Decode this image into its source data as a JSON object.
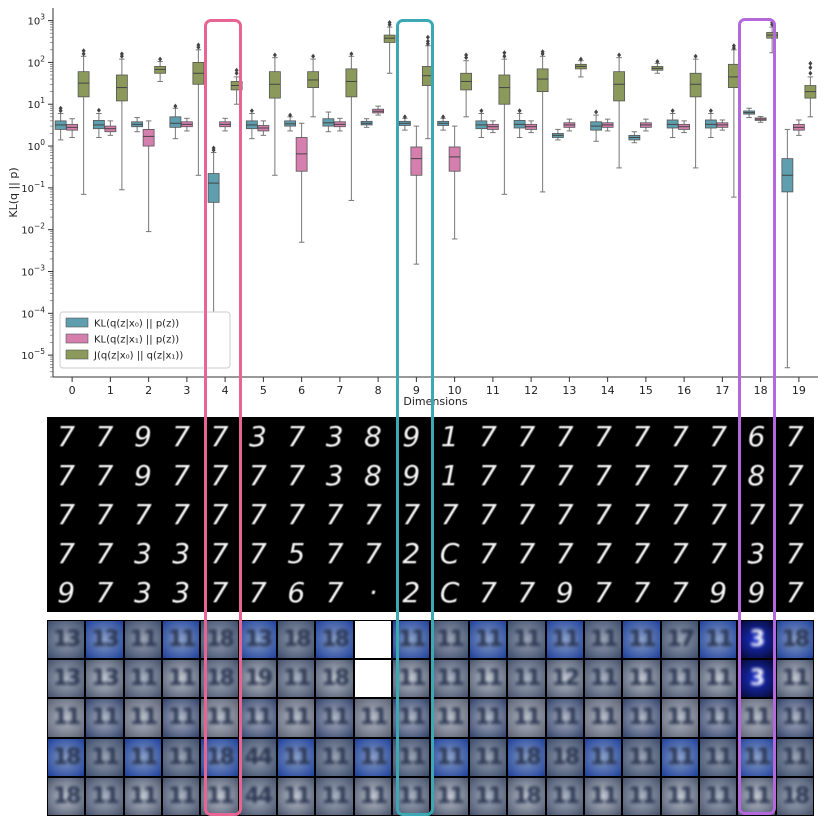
{
  "chart_data": {
    "type": "box",
    "scale": "log",
    "ylabel": "KL(q || p)",
    "xlabel": "Dimensions",
    "categories": [
      "0",
      "1",
      "2",
      "3",
      "4",
      "5",
      "6",
      "7",
      "8",
      "9",
      "10",
      "11",
      "12",
      "13",
      "14",
      "15",
      "16",
      "17",
      "18",
      "19"
    ],
    "ylim": [
      3e-06,
      2000
    ],
    "yticks": [
      {
        "value": 1000,
        "base": "10",
        "exp": "3"
      },
      {
        "value": 100,
        "base": "10",
        "exp": "2"
      },
      {
        "value": 10,
        "base": "10",
        "exp": "1"
      },
      {
        "value": 1,
        "base": "10",
        "exp": "0"
      },
      {
        "value": 0.1,
        "base": "10",
        "exp": "−1"
      },
      {
        "value": 0.01,
        "base": "10",
        "exp": "−2"
      },
      {
        "value": 0.001,
        "base": "10",
        "exp": "−3"
      },
      {
        "value": 0.0001,
        "base": "10",
        "exp": "−4"
      },
      {
        "value": 1e-05,
        "base": "10",
        "exp": "−5"
      }
    ],
    "legend": {
      "placement": "lower-left",
      "entries": [
        "KL(q(z|x₀) || p(z))",
        "KL(q(z|x₁) || p(z))",
        "J(q(z|x₀) || q(z|x₁))"
      ]
    },
    "series": [
      {
        "name": "KL(q(z|x₀) || p(z))",
        "color": "#5f9eae",
        "boxes": [
          {
            "whislo": 1.4,
            "q1": 2.5,
            "med": 3.2,
            "q3": 4.0,
            "whishi": 6.0,
            "fliers": [
              7.0,
              8.0
            ]
          },
          {
            "whislo": 1.6,
            "q1": 2.6,
            "med": 3.2,
            "q3": 4.1,
            "whishi": 6.0,
            "fliers": [
              7.2
            ]
          },
          {
            "whislo": 2.2,
            "q1": 2.9,
            "med": 3.3,
            "q3": 3.8,
            "whishi": 4.8,
            "fliers": []
          },
          {
            "whislo": 1.5,
            "q1": 2.8,
            "med": 3.5,
            "q3": 5.0,
            "whishi": 8.0,
            "fliers": [
              9.0
            ]
          },
          {
            "whislo": 0.0001,
            "q1": 0.045,
            "med": 0.13,
            "q3": 0.22,
            "whishi": 0.7,
            "fliers": [
              0.8,
              0.9
            ]
          },
          {
            "whislo": 1.5,
            "q1": 2.6,
            "med": 3.2,
            "q3": 4.0,
            "whishi": 6.0,
            "fliers": [
              7.0
            ]
          },
          {
            "whislo": 2.3,
            "q1": 3.0,
            "med": 3.4,
            "q3": 4.0,
            "whishi": 5.0,
            "fliers": [
              5.5
            ]
          },
          {
            "whislo": 2.2,
            "q1": 3.0,
            "med": 3.6,
            "q3": 4.5,
            "whishi": 6.5,
            "fliers": []
          },
          {
            "whislo": 2.8,
            "q1": 3.2,
            "med": 3.5,
            "q3": 3.9,
            "whishi": 4.5,
            "fliers": []
          },
          {
            "whislo": 2.4,
            "q1": 3.1,
            "med": 3.5,
            "q3": 3.9,
            "whishi": 4.6,
            "fliers": [
              5.0
            ]
          },
          {
            "whislo": 2.4,
            "q1": 3.1,
            "med": 3.5,
            "q3": 3.9,
            "whishi": 4.6,
            "fliers": [
              5.0
            ]
          },
          {
            "whislo": 1.6,
            "q1": 2.6,
            "med": 3.2,
            "q3": 4.0,
            "whishi": 6.0,
            "fliers": [
              7.0
            ]
          },
          {
            "whislo": 1.6,
            "q1": 2.7,
            "med": 3.3,
            "q3": 4.1,
            "whishi": 6.0,
            "fliers": [
              7.0
            ]
          },
          {
            "whislo": 1.4,
            "q1": 1.6,
            "med": 1.8,
            "q3": 2.0,
            "whishi": 2.5,
            "fliers": []
          },
          {
            "whislo": 1.3,
            "q1": 2.4,
            "med": 3.0,
            "q3": 3.8,
            "whishi": 5.5,
            "fliers": [
              6.5
            ]
          },
          {
            "whislo": 1.2,
            "q1": 1.4,
            "med": 1.6,
            "q3": 1.8,
            "whishi": 2.2,
            "fliers": []
          },
          {
            "whislo": 1.6,
            "q1": 2.7,
            "med": 3.3,
            "q3": 4.2,
            "whishi": 6.0,
            "fliers": [
              7.0
            ]
          },
          {
            "whislo": 1.6,
            "q1": 2.7,
            "med": 3.3,
            "q3": 4.2,
            "whishi": 6.0,
            "fliers": [
              7.0
            ]
          },
          {
            "whislo": 4.8,
            "q1": 5.8,
            "med": 6.3,
            "q3": 6.9,
            "whishi": 8.0,
            "fliers": []
          },
          {
            "whislo": 5e-06,
            "q1": 0.08,
            "med": 0.2,
            "q3": 0.5,
            "whishi": 2.5,
            "fliers": []
          }
        ]
      },
      {
        "name": "KL(q(z|x₁) || p(z))",
        "color": "#d57fae",
        "boxes": [
          {
            "whislo": 1.6,
            "q1": 2.4,
            "med": 2.8,
            "q3": 3.3,
            "whishi": 4.5,
            "fliers": []
          },
          {
            "whislo": 1.8,
            "q1": 2.2,
            "med": 2.6,
            "q3": 3.0,
            "whishi": 4.0,
            "fliers": []
          },
          {
            "whislo": 0.009,
            "q1": 1.0,
            "med": 1.7,
            "q3": 2.5,
            "whishi": 4.0,
            "fliers": []
          },
          {
            "whislo": 2.3,
            "q1": 2.9,
            "med": 3.3,
            "q3": 3.8,
            "whishi": 4.6,
            "fliers": []
          },
          {
            "whislo": 2.3,
            "q1": 2.9,
            "med": 3.3,
            "q3": 3.8,
            "whishi": 4.6,
            "fliers": []
          },
          {
            "whislo": 1.8,
            "q1": 2.3,
            "med": 2.7,
            "q3": 3.1,
            "whishi": 4.0,
            "fliers": []
          },
          {
            "whislo": 0.005,
            "q1": 0.25,
            "med": 0.65,
            "q3": 1.6,
            "whishi": 3.5,
            "fliers": []
          },
          {
            "whislo": 2.3,
            "q1": 2.9,
            "med": 3.3,
            "q3": 3.8,
            "whishi": 4.6,
            "fliers": []
          },
          {
            "whislo": 5.5,
            "q1": 6.2,
            "med": 6.8,
            "q3": 7.6,
            "whishi": 9.0,
            "fliers": []
          },
          {
            "whislo": 0.0015,
            "q1": 0.2,
            "med": 0.5,
            "q3": 0.95,
            "whishi": 3.0,
            "fliers": []
          },
          {
            "whislo": 0.006,
            "q1": 0.25,
            "med": 0.55,
            "q3": 0.95,
            "whishi": 3.0,
            "fliers": []
          },
          {
            "whislo": 2.1,
            "q1": 2.5,
            "med": 2.9,
            "q3": 3.3,
            "whishi": 4.0,
            "fliers": []
          },
          {
            "whislo": 2.1,
            "q1": 2.5,
            "med": 2.9,
            "q3": 3.3,
            "whishi": 4.0,
            "fliers": []
          },
          {
            "whislo": 2.3,
            "q1": 2.8,
            "med": 3.2,
            "q3": 3.6,
            "whishi": 4.4,
            "fliers": []
          },
          {
            "whislo": 2.3,
            "q1": 2.8,
            "med": 3.2,
            "q3": 3.6,
            "whishi": 4.4,
            "fliers": []
          },
          {
            "whislo": 2.3,
            "q1": 2.8,
            "med": 3.2,
            "q3": 3.6,
            "whishi": 4.4,
            "fliers": []
          },
          {
            "whislo": 2.1,
            "q1": 2.5,
            "med": 2.9,
            "q3": 3.3,
            "whishi": 4.0,
            "fliers": []
          },
          {
            "whislo": 2.4,
            "q1": 2.8,
            "med": 3.2,
            "q3": 3.6,
            "whishi": 4.2,
            "fliers": []
          },
          {
            "whislo": 3.7,
            "q1": 4.1,
            "med": 4.4,
            "q3": 4.7,
            "whishi": 5.1,
            "fliers": []
          },
          {
            "whislo": 1.8,
            "q1": 2.4,
            "med": 2.8,
            "q3": 3.3,
            "whishi": 4.2,
            "fliers": []
          }
        ]
      },
      {
        "name": "J(q(z|x₀) || q(z|x₁))",
        "color": "#8b9a5b",
        "boxes": [
          {
            "whislo": 0.07,
            "q1": 15,
            "med": 32,
            "q3": 60,
            "whishi": 140,
            "fliers": [
              160,
              190
            ]
          },
          {
            "whislo": 0.09,
            "q1": 12,
            "med": 25,
            "q3": 50,
            "whishi": 120,
            "fliers": [
              140,
              160
            ]
          },
          {
            "whislo": 35,
            "q1": 55,
            "med": 68,
            "q3": 80,
            "whishi": 105,
            "fliers": [
              120
            ]
          },
          {
            "whislo": 0.2,
            "q1": 30,
            "med": 55,
            "q3": 100,
            "whishi": 200,
            "fliers": [
              230,
              260
            ]
          },
          {
            "whislo": 10,
            "q1": 22,
            "med": 28,
            "q3": 35,
            "whishi": 45,
            "fliers": [
              55,
              65
            ]
          },
          {
            "whislo": 0.2,
            "q1": 14,
            "med": 30,
            "q3": 60,
            "whishi": 130,
            "fliers": [
              150
            ]
          },
          {
            "whislo": 5,
            "q1": 25,
            "med": 38,
            "q3": 60,
            "whishi": 120,
            "fliers": [
              140
            ]
          },
          {
            "whislo": 0.05,
            "q1": 15,
            "med": 35,
            "q3": 70,
            "whishi": 140,
            "fliers": [
              160
            ]
          },
          {
            "whislo": 55,
            "q1": 300,
            "med": 380,
            "q3": 450,
            "whishi": 700,
            "fliers": [
              800,
              900
            ]
          },
          {
            "whislo": 1.5,
            "q1": 28,
            "med": 48,
            "q3": 80,
            "whishi": 250,
            "fliers": [
              280,
              320,
              400
            ]
          },
          {
            "whislo": 5,
            "q1": 22,
            "med": 35,
            "q3": 55,
            "whishi": 110,
            "fliers": [
              130,
              150
            ]
          },
          {
            "whislo": 0.07,
            "q1": 10,
            "med": 25,
            "q3": 50,
            "whishi": 120,
            "fliers": [
              140,
              170
            ]
          },
          {
            "whislo": 0.08,
            "q1": 20,
            "med": 40,
            "q3": 70,
            "whishi": 140,
            "fliers": [
              160,
              180
            ]
          },
          {
            "whislo": 45,
            "q1": 70,
            "med": 80,
            "q3": 90,
            "whishi": 110,
            "fliers": [
              120
            ]
          },
          {
            "whislo": 0.3,
            "q1": 12,
            "med": 30,
            "q3": 60,
            "whishi": 130,
            "fliers": [
              150
            ]
          },
          {
            "whislo": 55,
            "q1": 65,
            "med": 72,
            "q3": 80,
            "whishi": 95,
            "fliers": [
              105
            ]
          },
          {
            "whislo": 0.3,
            "q1": 15,
            "med": 30,
            "q3": 55,
            "whishi": 120,
            "fliers": [
              140
            ]
          },
          {
            "whislo": 0.06,
            "q1": 25,
            "med": 45,
            "q3": 90,
            "whishi": 200,
            "fliers": [
              220,
              250
            ]
          },
          {
            "whislo": 170,
            "q1": 380,
            "med": 450,
            "q3": 520,
            "whishi": 700,
            "fliers": [
              800,
              900
            ]
          },
          {
            "whislo": 5,
            "q1": 14,
            "med": 20,
            "q3": 28,
            "whishi": 45,
            "fliers": [
              55,
              75,
              95
            ]
          }
        ]
      }
    ]
  },
  "mnist_grid": {
    "rows": [
      [
        "7",
        "7",
        "9",
        "7",
        "7",
        "3",
        "7",
        "3",
        "8",
        "9",
        "1",
        "7",
        "7",
        "7",
        "7",
        "7",
        "7",
        "7",
        "6",
        "7"
      ],
      [
        "7",
        "7",
        "9",
        "7",
        "7",
        "7",
        "7",
        "3",
        "8",
        "9",
        "1",
        "7",
        "7",
        "7",
        "7",
        "7",
        "7",
        "7",
        "8",
        "7"
      ],
      [
        "7",
        "7",
        "7",
        "7",
        "7",
        "7",
        "7",
        "7",
        "7",
        "7",
        "7",
        "7",
        "7",
        "7",
        "7",
        "7",
        "7",
        "7",
        "7",
        "7"
      ],
      [
        "7",
        "7",
        "3",
        "3",
        "7",
        "7",
        "5",
        "7",
        "7",
        "2",
        "C",
        "7",
        "7",
        "7",
        "7",
        "7",
        "7",
        "7",
        "3",
        "7"
      ],
      [
        "9",
        "7",
        "3",
        "3",
        "7",
        "7",
        "6",
        "7",
        "·",
        "2",
        "C",
        "7",
        "7",
        "9",
        "7",
        "7",
        "7",
        "9",
        "9",
        "7"
      ]
    ]
  },
  "svhn_grid": {
    "rows": [
      [
        "13",
        "13",
        "11",
        "11",
        "18",
        "13",
        "18",
        "18",
        "",
        "11",
        "11",
        "11",
        "11",
        "11",
        "11",
        "11",
        "17",
        "11",
        "3",
        "18"
      ],
      [
        "13",
        "13",
        "11",
        "11",
        "18",
        "19",
        "11",
        "18",
        "",
        "11",
        "11",
        "11",
        "11",
        "12",
        "11",
        "11",
        "11",
        "11",
        "3",
        "11"
      ],
      [
        "11",
        "11",
        "11",
        "11",
        "11",
        "11",
        "11",
        "11",
        "11",
        "11",
        "11",
        "11",
        "11",
        "11",
        "11",
        "11",
        "11",
        "11",
        "11",
        "11"
      ],
      [
        "18",
        "11",
        "11",
        "11",
        "18",
        "44",
        "11",
        "11",
        "11",
        "11",
        "11",
        "11",
        "18",
        "18",
        "11",
        "11",
        "11",
        "11",
        "11",
        "11"
      ],
      [
        "18",
        "11",
        "11",
        "11",
        "11",
        "44",
        "11",
        "11",
        "11",
        "11",
        "11",
        "11",
        "18",
        "11",
        "11",
        "11",
        "11",
        "11",
        "11",
        "18"
      ]
    ]
  }
}
